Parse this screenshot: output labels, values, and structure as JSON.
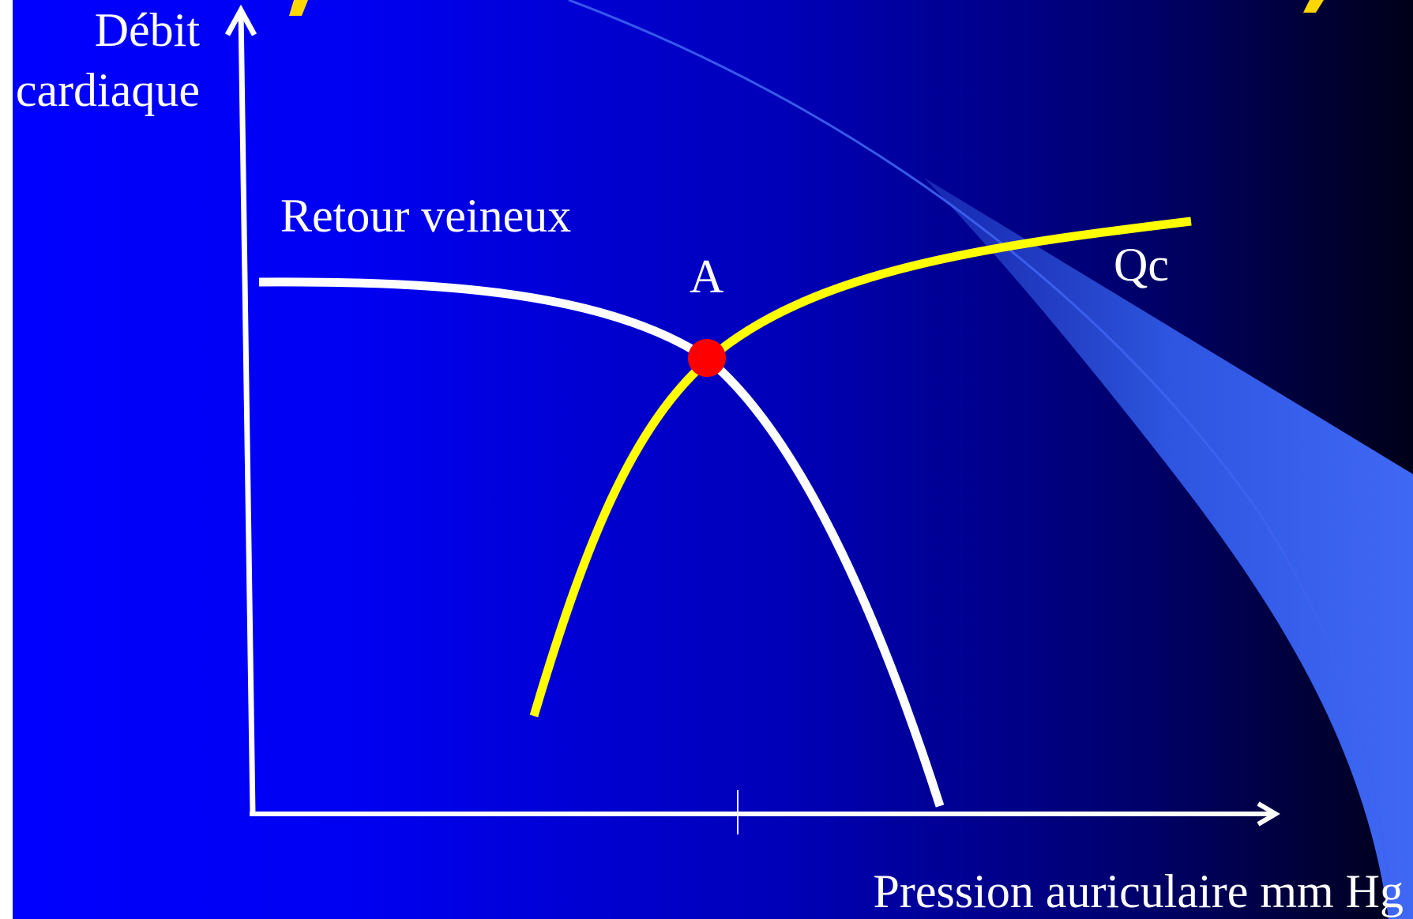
{
  "diagram": {
    "y_axis_label_line1": "Débit",
    "y_axis_label_line2": "cardiaque",
    "x_axis_label": "Pression auriculaire mm Hg",
    "curves": {
      "venous_return_label": "Retour veineux",
      "cardiac_output_label": "Qc"
    },
    "equilibrium_point_label": "A"
  },
  "colors": {
    "background_left": "#0000ff",
    "background_right": "#000018",
    "axis": "#ffffff",
    "venous_return_curve": "#ffffff",
    "cardiac_output_curve": "#ffff00",
    "equilibrium_point": "#ff0000",
    "decorative_wedge": "#3f66f0",
    "title_fragment": "#ffd700"
  }
}
